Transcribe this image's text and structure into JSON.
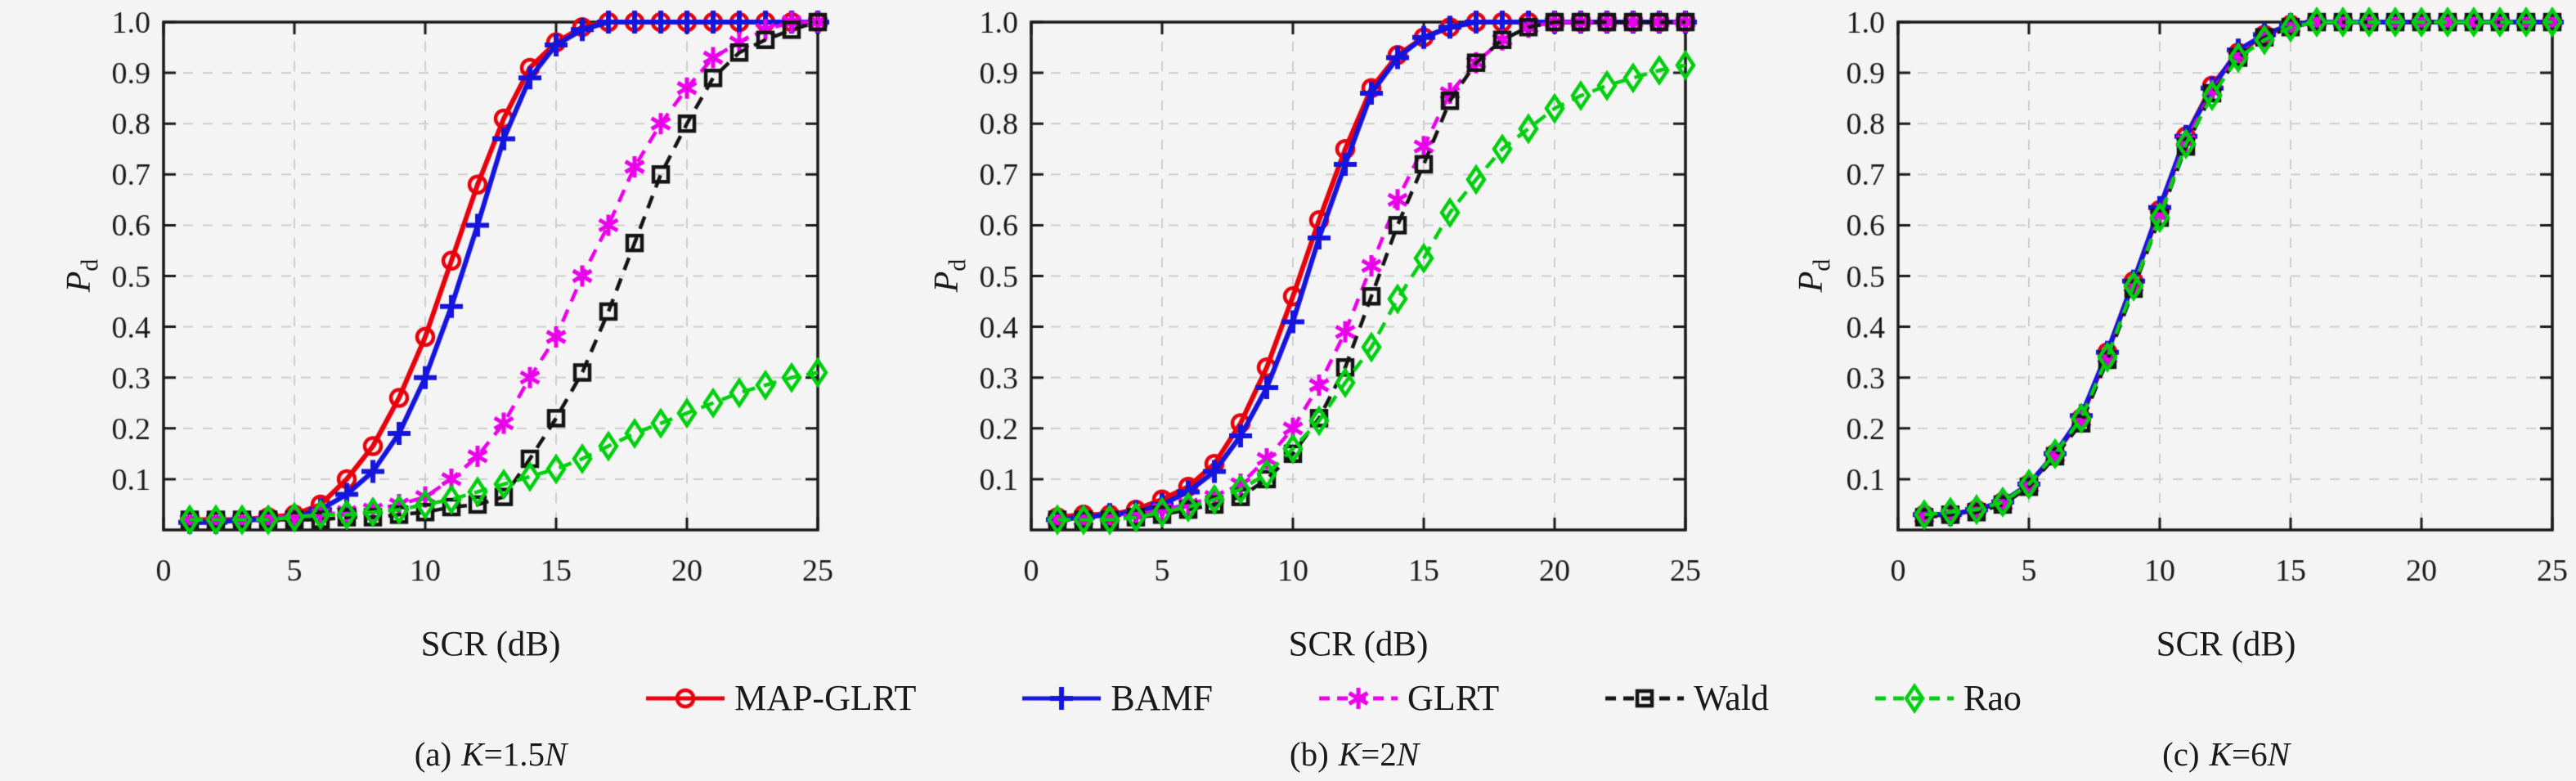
{
  "figure": {
    "background": "#f4f4f4",
    "text_color": "#1a1a1a",
    "frame_color": "#1a1a1a",
    "grid_color": "#cdcdcd"
  },
  "legend": {
    "items": [
      {
        "label": "MAP-GLRT",
        "color": "#e8000d",
        "line": "solid",
        "marker": "circle"
      },
      {
        "label": "BAMF",
        "color": "#1515dd",
        "line": "solid",
        "marker": "plus"
      },
      {
        "label": "GLRT",
        "color": "#ea00ea",
        "line": "dashed",
        "marker": "asterisk"
      },
      {
        "label": "Wald",
        "color": "#141414",
        "line": "dashed",
        "marker": "square"
      },
      {
        "label": "Rao",
        "color": "#00cf0f",
        "line": "dashed",
        "marker": "diamond"
      }
    ]
  },
  "captions": [
    {
      "prefix": "(a)",
      "var1": "K",
      "mid": "=1.5",
      "var2": "N"
    },
    {
      "prefix": "(b)",
      "var1": "K",
      "mid": "=2",
      "var2": "N"
    },
    {
      "prefix": "(c)",
      "var1": "K",
      "mid": "=6",
      "var2": "N"
    }
  ],
  "chart_data": [
    {
      "id": "a",
      "type": "line",
      "title": "(a) K=1.5N",
      "xlabel": "SCR (dB)",
      "ylabel": "Pd",
      "ylabel_main": "P",
      "ylabel_sub": "d",
      "xlim": [
        0,
        25
      ],
      "ylim": [
        0,
        1
      ],
      "grid": true,
      "legend_position": "bottom",
      "x_ticks": [
        0,
        5,
        10,
        15,
        20,
        25
      ],
      "y_ticks": [
        0.1,
        0.2,
        0.3,
        0.4,
        0.5,
        0.6,
        0.7,
        0.8,
        0.9,
        1.0
      ],
      "x": [
        1,
        2,
        3,
        4,
        5,
        6,
        7,
        8,
        9,
        10,
        11,
        12,
        13,
        14,
        15,
        16,
        17,
        18,
        19,
        20,
        21,
        22,
        23,
        24,
        25
      ],
      "series": [
        {
          "name": "MAP-GLRT",
          "values": [
            0.02,
            0.02,
            0.02,
            0.025,
            0.03,
            0.05,
            0.1,
            0.165,
            0.26,
            0.38,
            0.53,
            0.68,
            0.81,
            0.91,
            0.96,
            0.99,
            1,
            1,
            1,
            1,
            1,
            1,
            1,
            1,
            1
          ]
        },
        {
          "name": "BAMF",
          "values": [
            0.015,
            0.015,
            0.02,
            0.02,
            0.025,
            0.04,
            0.07,
            0.115,
            0.19,
            0.3,
            0.44,
            0.6,
            0.77,
            0.89,
            0.955,
            0.985,
            1,
            1,
            1,
            1,
            1,
            1,
            1,
            1,
            1
          ]
        },
        {
          "name": "GLRT",
          "values": [
            0.02,
            0.02,
            0.02,
            0.025,
            0.025,
            0.03,
            0.035,
            0.04,
            0.05,
            0.065,
            0.1,
            0.145,
            0.21,
            0.3,
            0.38,
            0.5,
            0.6,
            0.715,
            0.8,
            0.87,
            0.93,
            0.96,
            0.985,
            1,
            1
          ]
        },
        {
          "name": "Wald",
          "values": [
            0.02,
            0.02,
            0.02,
            0.02,
            0.02,
            0.02,
            0.025,
            0.025,
            0.03,
            0.035,
            0.045,
            0.05,
            0.065,
            0.14,
            0.22,
            0.31,
            0.43,
            0.565,
            0.7,
            0.8,
            0.89,
            0.94,
            0.965,
            0.985,
            1
          ]
        },
        {
          "name": "Rao",
          "values": [
            0.02,
            0.02,
            0.02,
            0.02,
            0.025,
            0.03,
            0.03,
            0.035,
            0.04,
            0.05,
            0.06,
            0.075,
            0.09,
            0.105,
            0.12,
            0.14,
            0.165,
            0.19,
            0.21,
            0.23,
            0.25,
            0.27,
            0.285,
            0.3,
            0.31
          ]
        }
      ]
    },
    {
      "id": "b",
      "type": "line",
      "title": "(b) K=2N",
      "xlabel": "SCR (dB)",
      "ylabel": "Pd",
      "ylabel_main": "P",
      "ylabel_sub": "d",
      "xlim": [
        0,
        25
      ],
      "ylim": [
        0,
        1
      ],
      "grid": true,
      "legend_position": "bottom",
      "x_ticks": [
        0,
        5,
        10,
        15,
        20,
        25
      ],
      "y_ticks": [
        0.1,
        0.2,
        0.3,
        0.4,
        0.5,
        0.6,
        0.7,
        0.8,
        0.9,
        1.0
      ],
      "x": [
        1,
        2,
        3,
        4,
        5,
        6,
        7,
        8,
        9,
        10,
        11,
        12,
        13,
        14,
        15,
        16,
        17,
        18,
        19,
        20,
        21,
        22,
        23,
        24,
        25
      ],
      "series": [
        {
          "name": "MAP-GLRT",
          "values": [
            0.025,
            0.03,
            0.03,
            0.04,
            0.06,
            0.085,
            0.13,
            0.21,
            0.32,
            0.46,
            0.61,
            0.75,
            0.87,
            0.935,
            0.97,
            0.99,
            1,
            1,
            1,
            1,
            1,
            1,
            1,
            1,
            1
          ]
        },
        {
          "name": "BAMF",
          "values": [
            0.02,
            0.025,
            0.03,
            0.035,
            0.05,
            0.075,
            0.115,
            0.185,
            0.28,
            0.41,
            0.575,
            0.72,
            0.86,
            0.93,
            0.97,
            0.99,
            1,
            1,
            1,
            1,
            1,
            1,
            1,
            1,
            1
          ]
        },
        {
          "name": "GLRT",
          "values": [
            0.02,
            0.02,
            0.025,
            0.03,
            0.04,
            0.05,
            0.065,
            0.09,
            0.14,
            0.2,
            0.285,
            0.39,
            0.52,
            0.65,
            0.755,
            0.86,
            0.92,
            0.965,
            0.99,
            1,
            1,
            1,
            1,
            1,
            1
          ]
        },
        {
          "name": "Wald",
          "values": [
            0.02,
            0.02,
            0.02,
            0.025,
            0.03,
            0.04,
            0.05,
            0.065,
            0.1,
            0.15,
            0.22,
            0.32,
            0.46,
            0.6,
            0.72,
            0.845,
            0.92,
            0.965,
            0.99,
            1,
            1,
            1,
            1,
            1,
            1
          ]
        },
        {
          "name": "Rao",
          "values": [
            0.02,
            0.02,
            0.02,
            0.025,
            0.035,
            0.045,
            0.06,
            0.08,
            0.11,
            0.16,
            0.215,
            0.29,
            0.36,
            0.455,
            0.535,
            0.625,
            0.69,
            0.75,
            0.79,
            0.83,
            0.855,
            0.875,
            0.89,
            0.905,
            0.915
          ]
        }
      ]
    },
    {
      "id": "c",
      "type": "line",
      "title": "(c) K=6N",
      "xlabel": "SCR (dB)",
      "ylabel": "Pd",
      "ylabel_main": "P",
      "ylabel_sub": "d",
      "xlim": [
        0,
        25
      ],
      "ylim": [
        0,
        1
      ],
      "grid": true,
      "legend_position": "bottom",
      "x_ticks": [
        0,
        5,
        10,
        15,
        20,
        25
      ],
      "y_ticks": [
        0.1,
        0.2,
        0.3,
        0.4,
        0.5,
        0.6,
        0.7,
        0.8,
        0.9,
        1.0
      ],
      "x": [
        1,
        2,
        3,
        4,
        5,
        6,
        7,
        8,
        9,
        10,
        11,
        12,
        13,
        14,
        15,
        16,
        17,
        18,
        19,
        20,
        21,
        22,
        23,
        24,
        25
      ],
      "series": [
        {
          "name": "MAP-GLRT",
          "values": [
            0.03,
            0.03,
            0.04,
            0.055,
            0.09,
            0.15,
            0.22,
            0.35,
            0.49,
            0.63,
            0.775,
            0.875,
            0.94,
            0.975,
            0.995,
            1,
            1,
            1,
            1,
            1,
            1,
            1,
            1,
            1,
            1
          ]
        },
        {
          "name": "BAMF",
          "values": [
            0.03,
            0.03,
            0.04,
            0.055,
            0.09,
            0.15,
            0.225,
            0.35,
            0.49,
            0.635,
            0.775,
            0.87,
            0.945,
            0.975,
            0.995,
            1,
            1,
            1,
            1,
            1,
            1,
            1,
            1,
            1,
            1
          ]
        },
        {
          "name": "GLRT",
          "values": [
            0.025,
            0.03,
            0.04,
            0.05,
            0.085,
            0.145,
            0.215,
            0.34,
            0.48,
            0.62,
            0.765,
            0.865,
            0.935,
            0.97,
            0.99,
            1,
            1,
            1,
            1,
            1,
            1,
            1,
            1,
            1,
            1
          ]
        },
        {
          "name": "Wald",
          "values": [
            0.025,
            0.03,
            0.035,
            0.05,
            0.085,
            0.145,
            0.21,
            0.335,
            0.475,
            0.615,
            0.755,
            0.86,
            0.93,
            0.97,
            0.99,
            1,
            1,
            1,
            1,
            1,
            1,
            1,
            1,
            1,
            1
          ]
        },
        {
          "name": "Rao",
          "values": [
            0.03,
            0.035,
            0.04,
            0.055,
            0.09,
            0.15,
            0.22,
            0.34,
            0.48,
            0.615,
            0.76,
            0.855,
            0.93,
            0.965,
            0.99,
            1,
            1,
            1,
            1,
            1,
            1,
            1,
            1,
            1,
            1
          ]
        }
      ]
    }
  ]
}
